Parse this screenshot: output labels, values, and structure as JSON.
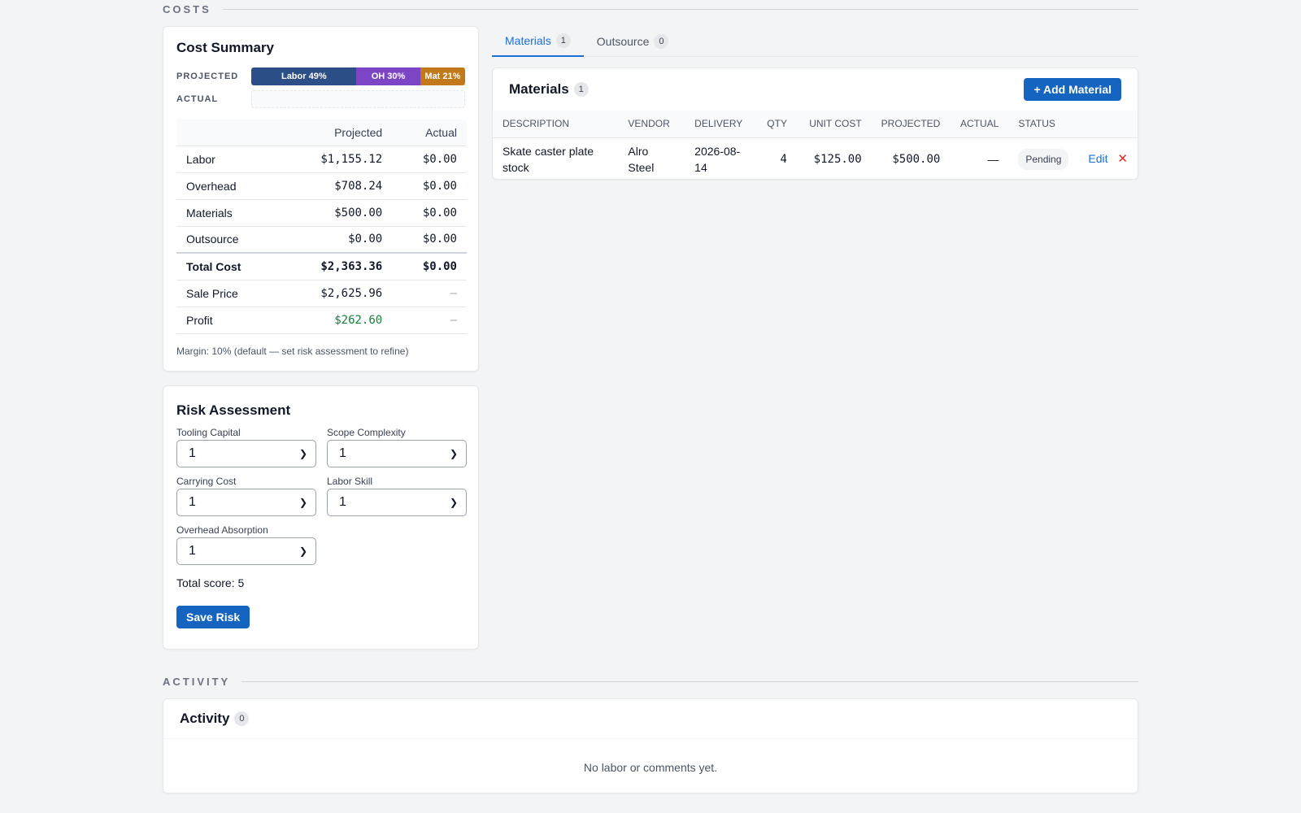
{
  "sections": {
    "costs": "COSTS",
    "activity": "ACTIVITY"
  },
  "cost_summary": {
    "title": "Cost Summary",
    "projected_label": "PROJECTED",
    "actual_label": "ACTUAL",
    "projected_bar": [
      {
        "label": "Labor 49%",
        "fraction": 0.49,
        "color": "#2b4f86"
      },
      {
        "label": "OH 30%",
        "fraction": 0.3,
        "color": "#7b45c6"
      },
      {
        "label": "Mat 21%",
        "fraction": 0.21,
        "color": "#c2791c"
      }
    ],
    "columns": {
      "projected": "Projected",
      "actual": "Actual"
    },
    "rows": [
      {
        "label": "Labor",
        "projected": "$1,155.12",
        "actual": "$0.00"
      },
      {
        "label": "Overhead",
        "projected": "$708.24",
        "actual": "$0.00"
      },
      {
        "label": "Materials",
        "projected": "$500.00",
        "actual": "$0.00"
      },
      {
        "label": "Outsource",
        "projected": "$0.00",
        "actual": "$0.00"
      }
    ],
    "total": {
      "label": "Total Cost",
      "projected": "$2,363.36",
      "actual": "$0.00"
    },
    "sale": {
      "label": "Sale Price",
      "projected": "$2,625.96",
      "actual": "—"
    },
    "profit": {
      "label": "Profit",
      "projected": "$262.60",
      "actual": "—"
    },
    "margin_note": "Margin: 10% (default — set risk assessment to refine)"
  },
  "risk": {
    "title": "Risk Assessment",
    "fields": {
      "tooling_capital": {
        "label": "Tooling Capital",
        "value": "1"
      },
      "scope_complexity": {
        "label": "Scope Complexity",
        "value": "1"
      },
      "carrying_cost": {
        "label": "Carrying Cost",
        "value": "1"
      },
      "labor_skill": {
        "label": "Labor Skill",
        "value": "1"
      },
      "overhead_absorption": {
        "label": "Overhead Absorption",
        "value": "1"
      }
    },
    "total_score": "Total score: 5",
    "save_label": "Save Risk"
  },
  "tabs": [
    {
      "label": "Materials",
      "count": "1"
    },
    {
      "label": "Outsource",
      "count": "0"
    }
  ],
  "materials": {
    "title": "Materials",
    "count": "1",
    "add_label": "+ Add Material",
    "columns": {
      "description": "DESCRIPTION",
      "vendor": "VENDOR",
      "delivery": "DELIVERY",
      "qty": "QTY",
      "unit_cost": "UNIT COST",
      "projected": "PROJECTED",
      "actual": "ACTUAL",
      "status": "STATUS"
    },
    "row": {
      "description": "Skate caster plate stock",
      "vendor": "Alro Steel",
      "delivery": "2026-08-14",
      "qty": "4",
      "unit_cost": "$125.00",
      "projected": "$500.00",
      "actual": "—",
      "status": "Pending",
      "edit_label": "Edit",
      "delete_icon": "close-icon"
    }
  },
  "activity": {
    "title": "Activity",
    "count": "0",
    "empty_text": "No labor or comments yet."
  }
}
